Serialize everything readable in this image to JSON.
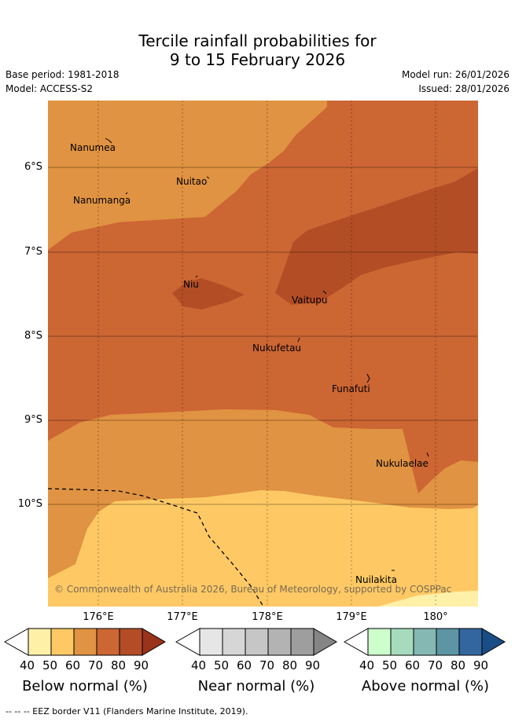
{
  "header": {
    "title_line1": "Tercile rainfall probabilities for",
    "title_line2": "9 to 15 February 2026",
    "base_period": "Base period: 1981-2018",
    "model": "Model: ACCESS-S2",
    "model_run": "Model run: 26/01/2026",
    "issued": "Issued: 28/01/2026"
  },
  "map": {
    "y_labels": [
      "6°S",
      "7°S",
      "8°S",
      "9°S",
      "10°S"
    ],
    "x_labels": [
      "176°E",
      "177°E",
      "178°E",
      "179°E",
      "180°"
    ],
    "places": [
      {
        "name": "Nanumea"
      },
      {
        "name": "Nuitao"
      },
      {
        "name": "Nanumanga"
      },
      {
        "name": "Niu"
      },
      {
        "name": "Vaitupu"
      },
      {
        "name": "Nukufetau"
      },
      {
        "name": "Funafuti"
      },
      {
        "name": "Nukulaelae"
      },
      {
        "name": "Nuilakita"
      }
    ],
    "copyright": "© Commonwealth of Australia 2026, Bureau of Meteorology, supported by COSPPac"
  },
  "legend": {
    "ticks": [
      "40",
      "50",
      "60",
      "70",
      "80",
      "90"
    ],
    "below_title": "Below normal (%)",
    "near_title": "Near normal (%)",
    "above_title": "Above normal (%)",
    "below_colors": [
      "#fff0a8",
      "#fec965",
      "#e09342",
      "#cc6633",
      "#b34d26",
      "#99331a"
    ],
    "near_colors": [
      "#e6e6e6",
      "#d6d6d6",
      "#c6c6c6",
      "#b3b3b3",
      "#9e9e9e",
      "#858585"
    ],
    "above_colors": [
      "#ccffcc",
      "#a6dcbd",
      "#85b8b3",
      "#5c95a3",
      "#33669e",
      "#1a4d85"
    ]
  },
  "footer": {
    "eez_note": "--  --  -- EEZ border V11 (Flanders Marine Institute, 2019)."
  }
}
